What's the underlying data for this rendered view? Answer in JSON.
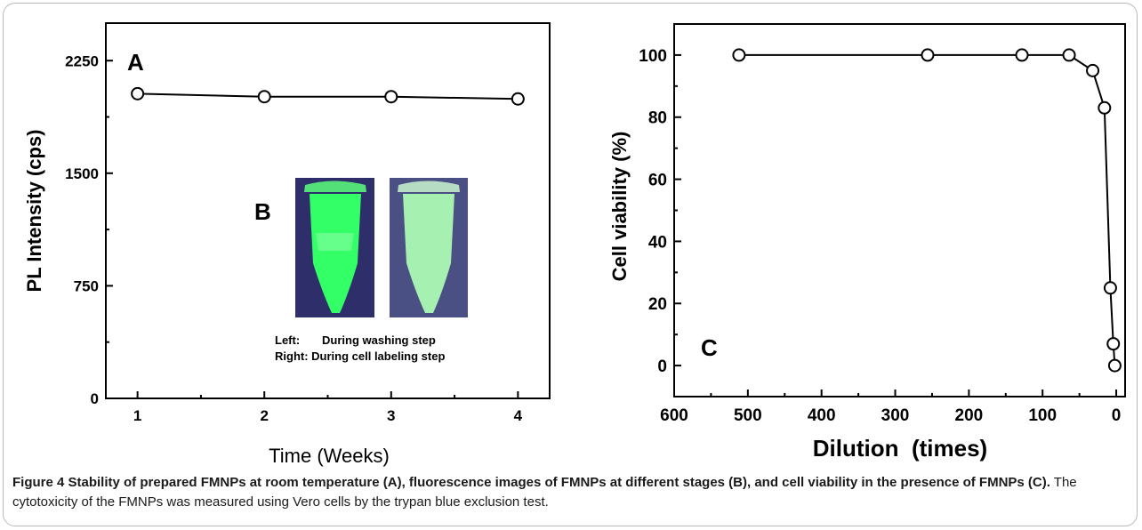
{
  "figure": {
    "caption_title": "Figure 4 Stability of prepared FMNPs at room temperature (A), fluorescence images of FMNPs at different stages (B), and cell viability in the presence of FMNPs (C).",
    "caption_body": " The cytotoxicity of the FMNPs was measured using Vero cells by the trypan blue exclusion test."
  },
  "inset": {
    "label": "B",
    "legend_left_key": "Left:",
    "legend_left_text": "During washing step",
    "legend_right": "Right: During cell labeling step",
    "left_tube_color": "#33ff66",
    "right_tube_color": "#a6f0b2",
    "background_color": "#2e2f6a"
  },
  "chart_data": [
    {
      "type": "line",
      "panel_label": "A",
      "xlabel": "Time (Weeks)",
      "ylabel": "PL Intensity (cps)",
      "xlim": [
        0.75,
        4.25
      ],
      "ylim": [
        0,
        2500
      ],
      "x_ticks": [
        1,
        2,
        3,
        4
      ],
      "y_ticks": [
        0,
        750,
        1500,
        2250
      ],
      "marker": "open-circle",
      "grid": false,
      "series": [
        {
          "x": [
            1,
            2,
            3,
            4
          ],
          "y": [
            2030,
            2010,
            2010,
            1995
          ]
        }
      ]
    },
    {
      "type": "line",
      "panel_label": "C",
      "xlabel": "Dilution  (times)",
      "ylabel": "Cell viability (%)",
      "xlim": [
        600,
        -12
      ],
      "ylim": [
        -10,
        110
      ],
      "x_ticks": [
        600,
        500,
        400,
        300,
        200,
        100,
        0
      ],
      "y_ticks": [
        0,
        20,
        40,
        60,
        80,
        100
      ],
      "marker": "open-circle",
      "grid": false,
      "series": [
        {
          "x": [
            512,
            256,
            128,
            64,
            32,
            16,
            8,
            4,
            2
          ],
          "y": [
            100,
            100,
            100,
            100,
            95,
            83,
            25,
            7,
            0
          ]
        }
      ]
    }
  ]
}
